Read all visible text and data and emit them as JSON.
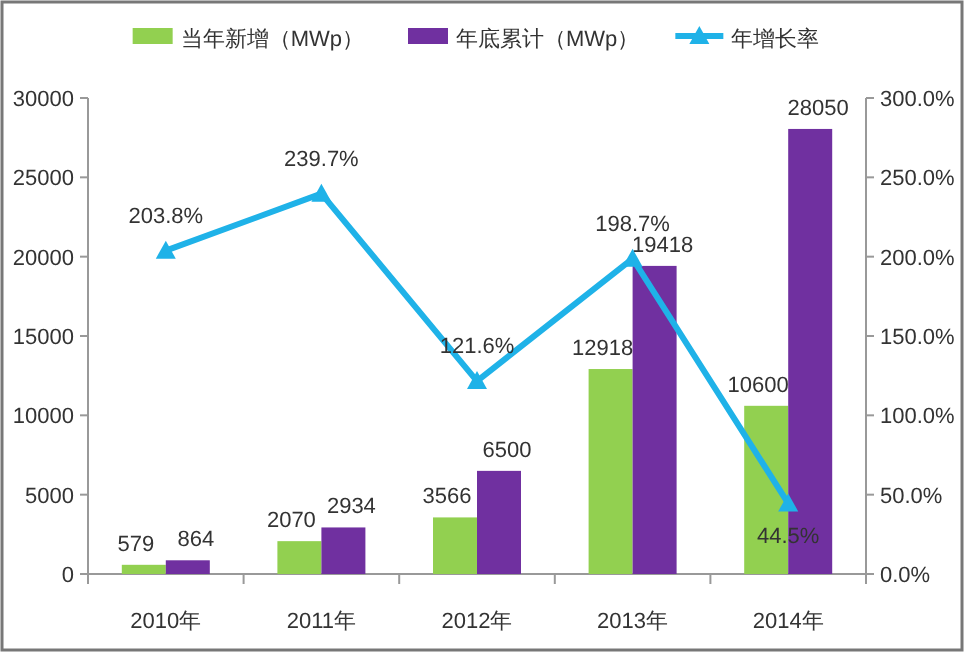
{
  "chart_data": {
    "type": "bar",
    "categories": [
      "2010年",
      "2011年",
      "2012年",
      "2013年",
      "2014年"
    ],
    "series": [
      {
        "name": "当年新增（MWp）",
        "color": "#92d050",
        "values": [
          579,
          2070,
          3566,
          12918,
          10600
        ],
        "value_labels": [
          "579",
          "2070",
          "3566",
          "12918",
          "10600"
        ]
      },
      {
        "name": "年底累计（MWp）",
        "color": "#7030a0",
        "values": [
          864,
          2934,
          6500,
          19418,
          28050
        ],
        "value_labels": [
          "864",
          "2934",
          "6500",
          "19418",
          "28050"
        ]
      },
      {
        "name": "年增长率",
        "type": "line",
        "axis": "y2",
        "color": "#1fb2e8",
        "marker": "triangle",
        "values": [
          203.8,
          239.7,
          121.6,
          198.7,
          44.5
        ],
        "value_labels": [
          "203.8%",
          "239.7%",
          "121.6%",
          "198.7%",
          "44.5%"
        ]
      }
    ],
    "ylim": [
      0,
      30000
    ],
    "yticks": [
      0,
      5000,
      10000,
      15000,
      20000,
      25000,
      30000
    ],
    "y2lim": [
      0,
      300
    ],
    "y2ticks": [
      {
        "value": 0,
        "label": "0.0%"
      },
      {
        "value": 50,
        "label": "50.0%"
      },
      {
        "value": 100,
        "label": "100.0%"
      },
      {
        "value": 150,
        "label": "150.0%"
      },
      {
        "value": 200,
        "label": "200.0%"
      },
      {
        "value": 250,
        "label": "250.0%"
      },
      {
        "value": 300,
        "label": "300.0%"
      }
    ],
    "legend": "top",
    "grid": false
  }
}
